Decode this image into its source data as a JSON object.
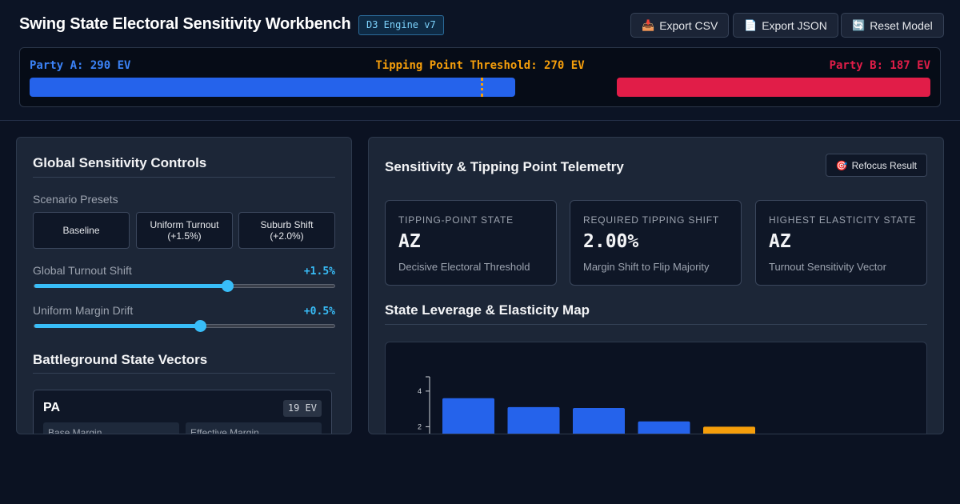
{
  "header": {
    "title": "Swing State Electoral Sensitivity Workbench",
    "engine_badge": "D3 Engine v7",
    "buttons": [
      {
        "icon": "inbox-tray-icon",
        "glyph": "📥",
        "label": "Export CSV"
      },
      {
        "icon": "document-icon",
        "glyph": "📄",
        "label": "Export JSON"
      },
      {
        "icon": "refresh-icon",
        "glyph": "🔄",
        "label": "Reset Model"
      }
    ]
  },
  "ev_bar": {
    "party_a": "Party A: 290 EV",
    "threshold": "Tipping Point Threshold: 270 EV",
    "party_b": "Party B: 187 EV",
    "party_a_ev": 290,
    "party_b_ev": 187,
    "threshold_ev": 270,
    "colors": {
      "party_a": "#2563eb",
      "party_b": "#e11d48",
      "threshold": "#f59e0b"
    }
  },
  "controls": {
    "title": "Global Sensitivity Controls",
    "presets_label": "Scenario Presets",
    "presets": [
      {
        "line1": "Baseline",
        "line2": ""
      },
      {
        "line1": "Uniform Turnout",
        "line2": "(+1.5%)"
      },
      {
        "line1": "Suburb Shift",
        "line2": "(+2.0%)"
      }
    ],
    "turnout": {
      "label": "Global Turnout Shift",
      "value": "+1.5%",
      "fraction": 0.64
    },
    "margin": {
      "label": "Uniform Margin Drift",
      "value": "+0.5%",
      "fraction": 0.55
    },
    "states_title": "Battleground State Vectors",
    "state_card": {
      "name": "PA",
      "ev": "19 EV",
      "field1": "Base Margin",
      "field2": "Effective Margin"
    }
  },
  "telemetry": {
    "title": "Sensitivity & Tipping Point Telemetry",
    "refocus": {
      "glyph": "🎯",
      "label": "Refocus Result"
    },
    "metrics": [
      {
        "key": "TIPPING-POINT STATE",
        "value": "AZ",
        "sub": "Decisive Electoral Threshold"
      },
      {
        "key": "REQUIRED TIPPING SHIFT",
        "value": "2.00%",
        "sub": "Margin Shift to Flip Majority"
      },
      {
        "key": "HIGHEST ELASTICITY STATE",
        "value": "AZ",
        "sub": "Turnout Sensitivity Vector"
      }
    ],
    "map_title": "State Leverage & Elasticity Map"
  },
  "chart_data": {
    "type": "bar",
    "title": "",
    "xlabel": "",
    "ylabel": "",
    "y_ticks": [
      "4",
      "2"
    ],
    "ylim": [
      0,
      4.8
    ],
    "values": [
      3.6,
      3.1,
      3.05,
      2.3,
      2.0
    ],
    "colors": [
      "#2563eb",
      "#2563eb",
      "#2563eb",
      "#2563eb",
      "#f59e0b"
    ]
  }
}
